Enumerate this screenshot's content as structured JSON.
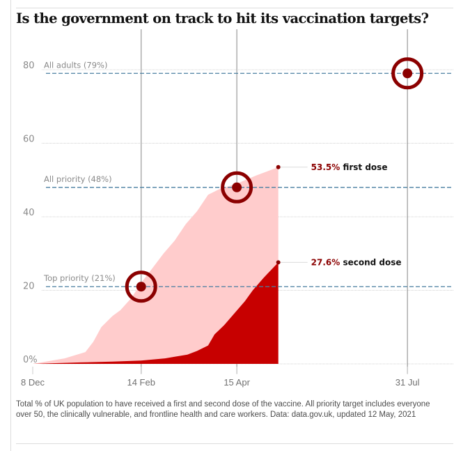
{
  "chart_data": {
    "type": "area",
    "title": "Is the government on track to hit its vaccination targets?",
    "xlabel": "",
    "ylabel": "",
    "ylim": [
      0,
      80
    ],
    "start_date": "2020-12-08",
    "y_ticks": [
      {
        "value": 0,
        "label": "0%"
      },
      {
        "value": 20,
        "label": "20"
      },
      {
        "value": 40,
        "label": "40"
      },
      {
        "value": 60,
        "label": "60"
      },
      {
        "value": 80,
        "label": "80"
      }
    ],
    "x_ticks": [
      {
        "day": 0,
        "label": "8 Dec"
      },
      {
        "day": 68,
        "label": "14 Feb"
      },
      {
        "day": 128,
        "label": "15 Apr"
      },
      {
        "day": 235,
        "label": "31 Jul"
      }
    ],
    "x_range_days": [
      -3,
      262
    ],
    "series": [
      {
        "name": "first dose",
        "color": "#ffcccc",
        "points": [
          [
            0,
            0
          ],
          [
            20,
            1.5
          ],
          [
            33,
            3.2
          ],
          [
            38,
            6
          ],
          [
            43,
            10
          ],
          [
            50,
            13
          ],
          [
            55,
            14.6
          ],
          [
            62,
            18
          ],
          [
            68,
            22
          ],
          [
            75,
            26
          ],
          [
            82,
            30
          ],
          [
            89,
            33.5
          ],
          [
            96,
            38
          ],
          [
            103,
            41.5
          ],
          [
            110,
            46
          ],
          [
            117,
            47.5
          ],
          [
            128,
            49
          ],
          [
            140,
            51.2
          ],
          [
            154,
            53.5
          ]
        ],
        "end_value": 53.5,
        "end_label_value": "53.5%",
        "end_label_desc": "first dose"
      },
      {
        "name": "second dose",
        "color": "#c70000",
        "points": [
          [
            0,
            0
          ],
          [
            30,
            0.4
          ],
          [
            50,
            0.6
          ],
          [
            68,
            0.9
          ],
          [
            83,
            1.5
          ],
          [
            90,
            2
          ],
          [
            97,
            2.5
          ],
          [
            103,
            3.5
          ],
          [
            110,
            5
          ],
          [
            114,
            8
          ],
          [
            120,
            10.5
          ],
          [
            128,
            14.5
          ],
          [
            133,
            17
          ],
          [
            138,
            20
          ],
          [
            145,
            23.5
          ],
          [
            154,
            27.6
          ]
        ],
        "end_value": 27.6,
        "end_label_value": "27.6%",
        "end_label_desc": "second dose"
      }
    ],
    "targets": [
      {
        "name": "Top priority",
        "label": "Top priority (21%)",
        "value": 21,
        "day": 68
      },
      {
        "name": "All priority",
        "label": "All priority (48%)",
        "value": 48,
        "day": 128
      },
      {
        "name": "All adults",
        "label": "All adults (79%)",
        "value": 79,
        "day": 235
      }
    ],
    "colors": {
      "target": "#8b0000",
      "target_line": "#4a7fa0",
      "grid": "#d0d0d0",
      "vline": "#999999"
    },
    "caption": "Total % of UK population to have received a first and second dose of the vaccine. All priority target includes everyone over 50, the clinically vulnerable, and frontline health and care workers. Data: data.gov.uk, updated 12 May, 2021"
  }
}
